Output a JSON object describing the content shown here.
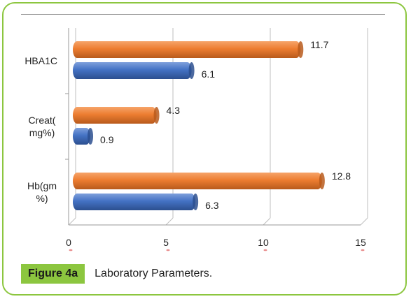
{
  "chart_data": {
    "type": "bar",
    "orientation": "horizontal",
    "categories": [
      "HBA1C",
      "Creat(\nmg%)",
      "Hb(gm\n%)"
    ],
    "series": [
      {
        "values": [
          11.7,
          4.3,
          12.8
        ],
        "color": "#ed7d31"
      },
      {
        "values": [
          6.1,
          0.9,
          6.3
        ],
        "color": "#4472c4"
      }
    ],
    "xlim": [
      0,
      15
    ],
    "xticks": [
      "0",
      "5",
      "10",
      "15"
    ],
    "grid": true,
    "legend": "none",
    "style": "3d-cylinder"
  },
  "caption": {
    "label": "Figure 4a",
    "text": "Laboratory Parameters."
  }
}
